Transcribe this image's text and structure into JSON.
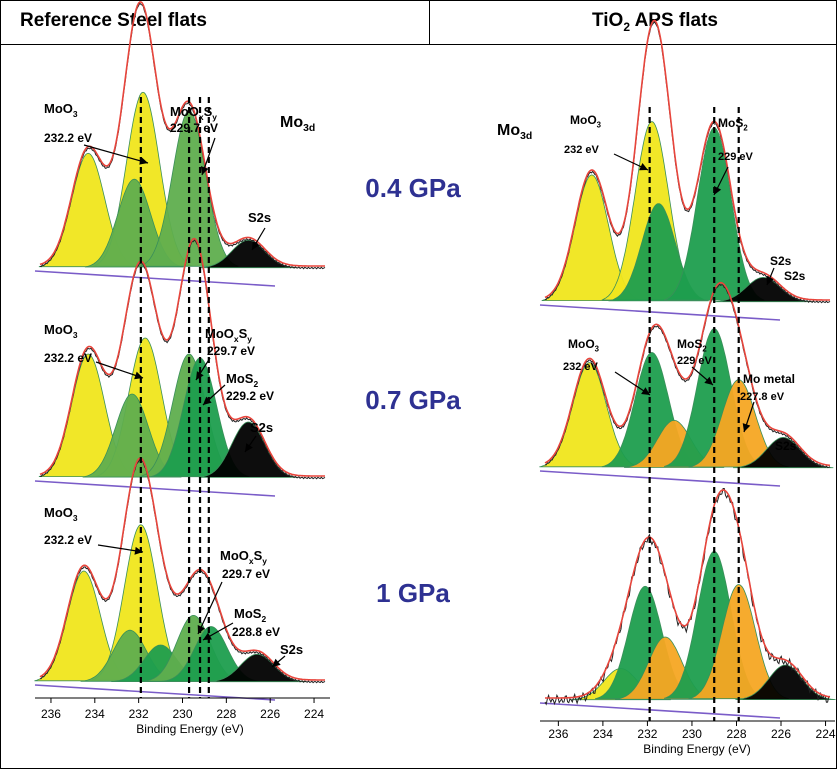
{
  "header": {
    "left_title": "Reference Steel flats",
    "right_title_prefix": "TiO",
    "right_title_sub": "2",
    "right_title_suffix": " APS flats"
  },
  "pressures": [
    "0.4 GPa",
    "0.7 GPa",
    "1 GPa"
  ],
  "colors": {
    "pressure_text": "#2e3192",
    "envelope": "#e8453c",
    "raw": "#222222",
    "moo3": "#f0e61c",
    "mos2": "#1e9e4e",
    "mooxsy": "#5fae4e",
    "s2s": "#000000",
    "mo_metal": "#f5a623",
    "baseline": "#7a5cc8"
  },
  "chart_data": [
    {
      "type": "line",
      "title": "Reference Steel flats",
      "xlabel": "Binding Energy (eV)",
      "x_ticks": [
        236,
        234,
        232,
        230,
        228,
        226,
        224
      ],
      "xlim": [
        236.5,
        223.5
      ],
      "x_reversed": true,
      "ref_lines_eV": [
        231.9,
        229.7,
        229.2,
        228.8
      ],
      "spectra": [
        {
          "pressure": "0.4 GPa",
          "element_label": "Mo",
          "element_sub": "3d",
          "annotations": [
            {
              "label": "MoO3",
              "energy": "232.2 eV"
            },
            {
              "label": "MoOxSy",
              "energy": "229.7 eV"
            },
            {
              "label": "S2s",
              "energy": ""
            }
          ],
          "peaks": [
            {
              "component": "MoO3",
              "center": 234.3,
              "height": 0.62,
              "color": "moo3"
            },
            {
              "component": "MoO3",
              "center": 231.8,
              "height": 0.95,
              "color": "moo3"
            },
            {
              "component": "MoOxSy",
              "center": 232.2,
              "height": 0.48,
              "color": "mooxsy"
            },
            {
              "component": "MoOxSy",
              "center": 229.7,
              "height": 0.85,
              "color": "mooxsy"
            },
            {
              "component": "S2s",
              "center": 227.0,
              "height": 0.15,
              "color": "s2s"
            }
          ]
        },
        {
          "pressure": "0.7 GPa",
          "annotations": [
            {
              "label": "MoO3",
              "energy": "232.2 eV"
            },
            {
              "label": "MoOxSy",
              "energy": "229.7 eV"
            },
            {
              "label": "MoS2",
              "energy": "229.2 eV"
            },
            {
              "label": "S2s",
              "energy": ""
            }
          ],
          "peaks": [
            {
              "component": "MoO3",
              "center": 234.3,
              "height": 0.62,
              "color": "moo3"
            },
            {
              "component": "MoO3",
              "center": 231.7,
              "height": 0.7,
              "color": "moo3"
            },
            {
              "component": "MoOxSy",
              "center": 232.3,
              "height": 0.42,
              "color": "mooxsy"
            },
            {
              "component": "MoOxSy",
              "center": 229.7,
              "height": 0.62,
              "color": "mooxsy"
            },
            {
              "component": "MoS2",
              "center": 229.2,
              "height": 0.6,
              "color": "mos2"
            },
            {
              "component": "S2s",
              "center": 227.0,
              "height": 0.28,
              "color": "s2s"
            }
          ]
        },
        {
          "pressure": "1 GPa",
          "annotations": [
            {
              "label": "MoO3",
              "energy": "232.2 eV"
            },
            {
              "label": "MoOxSy",
              "energy": "229.7 eV"
            },
            {
              "label": "MoS2",
              "energy": "228.8 eV"
            },
            {
              "label": "S2s",
              "energy": ""
            }
          ],
          "peaks": [
            {
              "component": "MoO3",
              "center": 234.5,
              "height": 0.6,
              "color": "moo3"
            },
            {
              "component": "MoO3",
              "center": 231.9,
              "height": 0.85,
              "color": "moo3"
            },
            {
              "component": "MoOxSy",
              "center": 232.4,
              "height": 0.28,
              "color": "mooxsy"
            },
            {
              "component": "MoS2",
              "center": 231.0,
              "height": 0.2,
              "color": "mos2"
            },
            {
              "component": "MoOxSy",
              "center": 229.5,
              "height": 0.36,
              "color": "mooxsy"
            },
            {
              "component": "MoS2",
              "center": 228.7,
              "height": 0.3,
              "color": "mos2"
            },
            {
              "component": "S2s",
              "center": 226.6,
              "height": 0.15,
              "color": "s2s"
            }
          ]
        }
      ]
    },
    {
      "type": "line",
      "title": "TiO2 APS flats",
      "xlabel": "Binding Energy (eV)",
      "x_ticks": [
        236,
        234,
        232,
        230,
        228,
        226,
        224
      ],
      "xlim": [
        236.6,
        223.8
      ],
      "x_reversed": true,
      "ref_lines_eV": [
        231.9,
        229.0,
        227.9
      ],
      "spectra": [
        {
          "pressure": "0.4 GPa",
          "element_label": "Mo",
          "element_sub": "3d",
          "annotations": [
            {
              "label": "MoO3",
              "energy": "232 eV"
            },
            {
              "label": "MoS2",
              "energy": "229 eV"
            },
            {
              "label": "S2s",
              "energy": ""
            },
            {
              "label": "S2s",
              "energy": ""
            }
          ],
          "peaks": [
            {
              "component": "MoO3",
              "center": 234.5,
              "height": 0.62,
              "color": "moo3"
            },
            {
              "component": "MoO3",
              "center": 231.8,
              "height": 0.88,
              "color": "moo3"
            },
            {
              "component": "MoS2",
              "center": 231.5,
              "height": 0.48,
              "color": "mos2"
            },
            {
              "component": "MoS2",
              "center": 229.0,
              "height": 0.85,
              "color": "mos2"
            },
            {
              "component": "S2s",
              "center": 226.8,
              "height": 0.12,
              "color": "s2s"
            }
          ]
        },
        {
          "pressure": "0.7 GPa",
          "annotations": [
            {
              "label": "MoO3",
              "energy": "232 eV"
            },
            {
              "label": "MoS2",
              "energy": "229 eV"
            },
            {
              "label": "Mo metal",
              "energy": "227.8 eV"
            },
            {
              "label": "S2s",
              "energy": ""
            }
          ],
          "peaks": [
            {
              "component": "MoO3",
              "center": 234.6,
              "height": 0.62,
              "color": "moo3"
            },
            {
              "component": "MoS2",
              "center": 231.8,
              "height": 0.68,
              "color": "mos2"
            },
            {
              "component": "Mo metal",
              "center": 230.8,
              "height": 0.28,
              "color": "mo_metal"
            },
            {
              "component": "MoS2",
              "center": 229.0,
              "height": 0.82,
              "color": "mos2"
            },
            {
              "component": "Mo metal",
              "center": 227.9,
              "height": 0.52,
              "color": "mo_metal"
            },
            {
              "component": "S2s",
              "center": 225.9,
              "height": 0.18,
              "color": "s2s"
            }
          ]
        },
        {
          "pressure": "1 GPa",
          "annotations": [],
          "peaks": [
            {
              "component": "MoO3",
              "center": 233.2,
              "height": 0.18,
              "color": "moo3"
            },
            {
              "component": "MoS2",
              "center": 232.1,
              "height": 0.65,
              "color": "mos2"
            },
            {
              "component": "Mo metal",
              "center": 231.2,
              "height": 0.36,
              "color": "mo_metal"
            },
            {
              "component": "MoS2",
              "center": 229.0,
              "height": 0.85,
              "color": "mos2"
            },
            {
              "component": "Mo metal",
              "center": 227.9,
              "height": 0.66,
              "color": "mo_metal"
            },
            {
              "component": "S2s",
              "center": 225.8,
              "height": 0.2,
              "color": "s2s"
            }
          ]
        }
      ]
    }
  ]
}
